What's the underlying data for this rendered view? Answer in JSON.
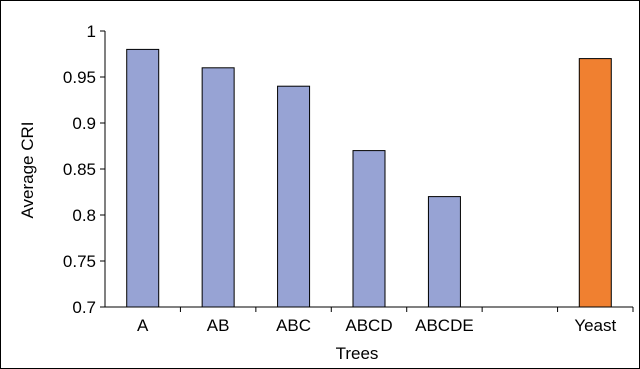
{
  "chart_data": {
    "type": "bar",
    "title": "",
    "xlabel": "Trees",
    "ylabel": "Average CRI",
    "ylim": [
      0.7,
      1
    ],
    "yticks": [
      "0.7",
      "0.75",
      "0.8",
      "0.85",
      "0.9",
      "0.95",
      "1"
    ],
    "categories": [
      "A",
      "AB",
      "ABC",
      "ABCD",
      "ABCDE",
      "",
      "Yeast"
    ],
    "values": [
      0.98,
      0.96,
      0.94,
      0.87,
      0.82,
      null,
      0.97
    ],
    "grid": false,
    "legend": "none",
    "colors": {
      "default_bar": "#97a3d4",
      "highlight_bar": "#f08030",
      "bar_stroke": "#000000",
      "axis": "#000000",
      "frame": "#000000"
    },
    "highlight_category": "Yeast"
  }
}
